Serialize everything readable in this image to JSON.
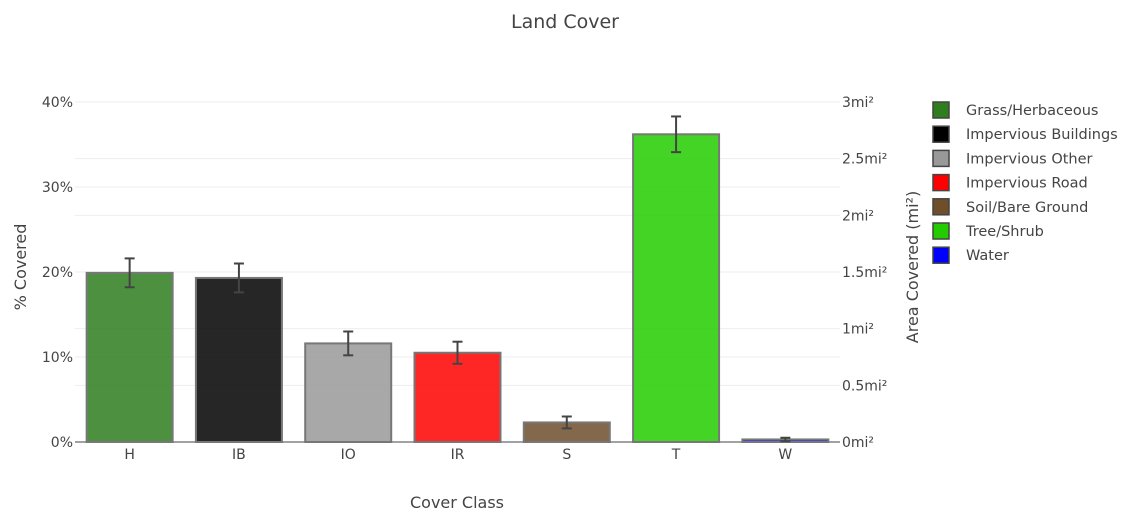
{
  "chart_data": {
    "type": "bar",
    "title": "Land Cover",
    "xlabel": "Cover Class",
    "ylabel": "% Covered",
    "y2label": "Area Covered (mi²)",
    "categories": [
      "H",
      "IB",
      "IO",
      "IR",
      "S",
      "T",
      "W"
    ],
    "values": [
      19.9,
      19.3,
      11.6,
      10.5,
      2.3,
      36.2,
      0.3
    ],
    "error": [
      1.7,
      1.7,
      1.4,
      1.3,
      0.7,
      2.1,
      0.2
    ],
    "ylim": [
      0,
      40
    ],
    "y_ticks": [
      "0%",
      "10%",
      "20%",
      "30%",
      "40%"
    ],
    "y2lim": [
      0,
      3.0
    ],
    "y2_ticks": [
      "0mi²",
      "0.5mi²",
      "1mi²",
      "1.5mi²",
      "2mi²",
      "2.5mi²",
      "3mi²"
    ],
    "grid": true,
    "legend_position": "right",
    "colors": [
      "#2e7d1e",
      "#000000",
      "#999999",
      "#ff0000",
      "#6f4e2c",
      "#22cc00",
      "#0000ff"
    ],
    "legend": [
      "Grass/Herbaceous",
      "Impervious Buildings",
      "Impervious Other",
      "Impervious Road",
      "Soil/Bare Ground",
      "Tree/Shrub",
      "Water"
    ]
  }
}
